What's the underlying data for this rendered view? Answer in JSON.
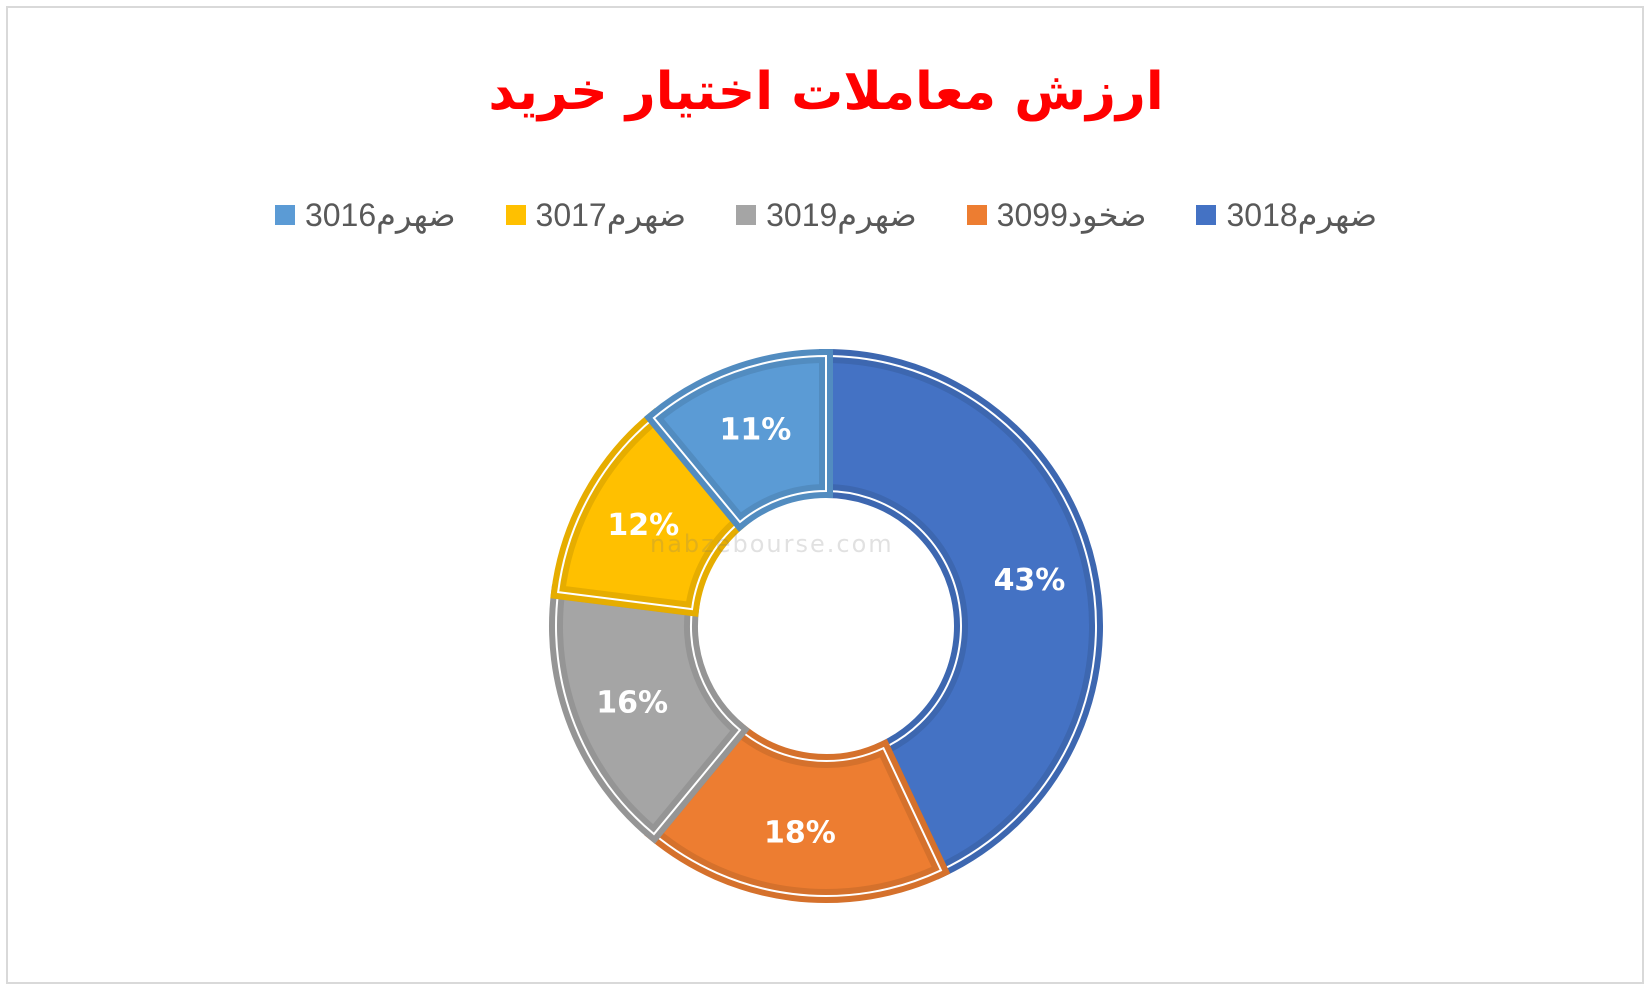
{
  "chart_data": {
    "type": "pie",
    "subtype": "donut",
    "title": "ارزش معاملات اختیار خرید",
    "categories": [
      "ضهرم3018",
      "ضخود3099",
      "ضهرم3019",
      "ضهرم3017",
      "ضهرم3016"
    ],
    "values": [
      43,
      18,
      16,
      12,
      11
    ],
    "data_labels": [
      "43%",
      "18%",
      "16%",
      "12%",
      "11%"
    ],
    "colors": [
      "#4472C4",
      "#ED7D31",
      "#A5A5A5",
      "#FFC000",
      "#5B9BD5"
    ],
    "legend_position": "top",
    "watermark": "nabzebourse.com"
  }
}
